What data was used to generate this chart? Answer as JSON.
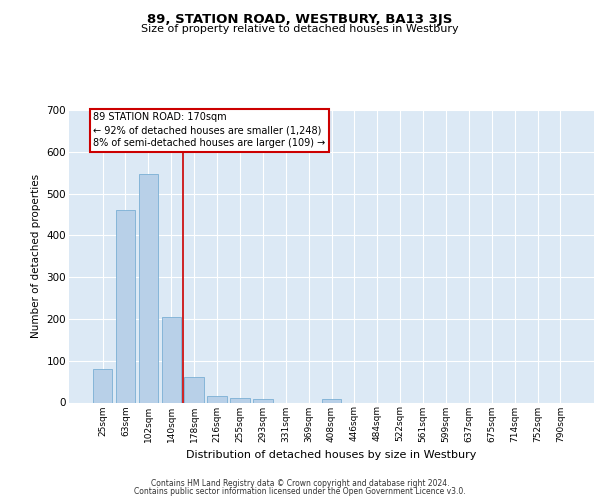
{
  "title": "89, STATION ROAD, WESTBURY, BA13 3JS",
  "subtitle": "Size of property relative to detached houses in Westbury",
  "xlabel": "Distribution of detached houses by size in Westbury",
  "ylabel": "Number of detached properties",
  "categories": [
    "25sqm",
    "63sqm",
    "102sqm",
    "140sqm",
    "178sqm",
    "216sqm",
    "255sqm",
    "293sqm",
    "331sqm",
    "369sqm",
    "408sqm",
    "446sqm",
    "484sqm",
    "522sqm",
    "561sqm",
    "599sqm",
    "637sqm",
    "675sqm",
    "714sqm",
    "752sqm",
    "790sqm"
  ],
  "values": [
    80,
    460,
    548,
    205,
    60,
    15,
    10,
    8,
    0,
    0,
    8,
    0,
    0,
    0,
    0,
    0,
    0,
    0,
    0,
    0,
    0
  ],
  "bar_color": "#b8d0e8",
  "bar_edge_color": "#7bafd4",
  "background_color": "#dce9f5",
  "grid_color": "#ffffff",
  "annotation_line1": "89 STATION ROAD: 170sqm",
  "annotation_line2": "← 92% of detached houses are smaller (1,248)",
  "annotation_line3": "8% of semi-detached houses are larger (109) →",
  "footnote1": "Contains HM Land Registry data © Crown copyright and database right 2024.",
  "footnote2": "Contains public sector information licensed under the Open Government Licence v3.0.",
  "ylim": [
    0,
    700
  ],
  "yticks": [
    0,
    100,
    200,
    300,
    400,
    500,
    600,
    700
  ],
  "red_line_x": 3.5
}
